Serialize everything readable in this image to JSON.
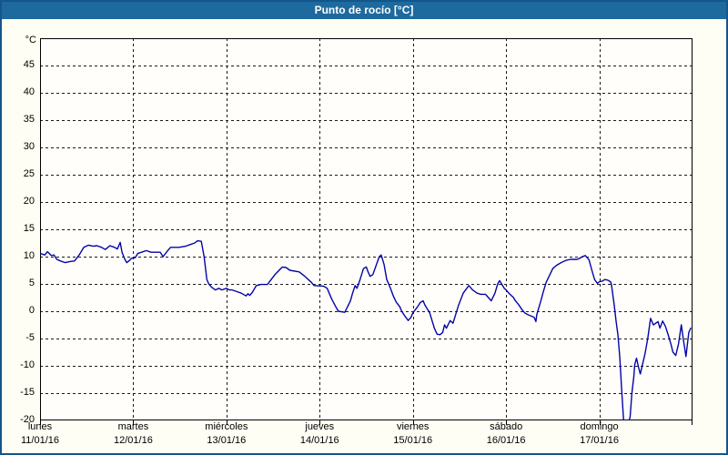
{
  "window": {
    "title": "Punto de rocío [°C]"
  },
  "colors": {
    "titlebar_bg": "#1e6a9e",
    "titlebar_text": "#ffffff",
    "outer_border": "#14558c",
    "page_bg": "#fffef4",
    "plot_bg": "#fffefa",
    "grid": "#1a1a1a",
    "axis": "#000000",
    "line": "#0404a8",
    "text": "#000000"
  },
  "chart_data": {
    "type": "line",
    "title": "Punto de rocío [°C]",
    "y_unit_label": "°C",
    "ylim": [
      -20,
      50
    ],
    "yticks": [
      45,
      40,
      35,
      30,
      25,
      20,
      15,
      10,
      5,
      0,
      -5,
      -10,
      -15,
      -20
    ],
    "x_days": 7,
    "grid": "dashed",
    "legend": "none",
    "days": [
      {
        "name": "lunes",
        "date": "11/01/16"
      },
      {
        "name": "martes",
        "date": "12/01/16"
      },
      {
        "name": "miércoles",
        "date": "13/01/16"
      },
      {
        "name": "jueves",
        "date": "14/01/16"
      },
      {
        "name": "viernes",
        "date": "15/01/16"
      },
      {
        "name": "sábado",
        "date": "16/01/16"
      },
      {
        "name": "domingo",
        "date": "17/01/16"
      }
    ],
    "series": [
      {
        "name": "Punto de rocío",
        "color": "#0404a8",
        "points_day_value": [
          [
            0,
            10.6
          ],
          [
            0.05,
            10.3
          ],
          [
            0.08,
            10.9
          ],
          [
            0.12,
            10.2
          ],
          [
            0.15,
            10.3
          ],
          [
            0.18,
            9.5
          ],
          [
            0.22,
            9.2
          ],
          [
            0.27,
            8.9
          ],
          [
            0.32,
            9.1
          ],
          [
            0.37,
            9.2
          ],
          [
            0.42,
            10.3
          ],
          [
            0.47,
            11.7
          ],
          [
            0.52,
            12.1
          ],
          [
            0.57,
            11.9
          ],
          [
            0.61,
            12.0
          ],
          [
            0.66,
            11.7
          ],
          [
            0.7,
            11.3
          ],
          [
            0.75,
            12.0
          ],
          [
            0.8,
            11.7
          ],
          [
            0.83,
            11.4
          ],
          [
            0.86,
            12.6
          ],
          [
            0.88,
            10.8
          ],
          [
            0.91,
            9.5
          ],
          [
            0.93,
            8.9
          ],
          [
            0.96,
            9.3
          ],
          [
            0.98,
            9.7
          ],
          [
            1.02,
            9.8
          ],
          [
            1.05,
            10.6
          ],
          [
            1.09,
            10.8
          ],
          [
            1.14,
            11.1
          ],
          [
            1.19,
            10.8
          ],
          [
            1.29,
            10.8
          ],
          [
            1.32,
            10.0
          ],
          [
            1.37,
            11.1
          ],
          [
            1.4,
            11.7
          ],
          [
            1.49,
            11.7
          ],
          [
            1.56,
            11.9
          ],
          [
            1.61,
            12.2
          ],
          [
            1.66,
            12.5
          ],
          [
            1.69,
            12.9
          ],
          [
            1.73,
            12.8
          ],
          [
            1.76,
            10.0
          ],
          [
            1.79,
            5.8
          ],
          [
            1.81,
            5.0
          ],
          [
            1.84,
            4.4
          ],
          [
            1.88,
            3.9
          ],
          [
            1.92,
            4.2
          ],
          [
            1.95,
            3.9
          ],
          [
            2.0,
            4.2
          ],
          [
            2.03,
            3.9
          ],
          [
            2.06,
            3.9
          ],
          [
            2.11,
            3.6
          ],
          [
            2.16,
            3.3
          ],
          [
            2.21,
            2.8
          ],
          [
            2.23,
            3.2
          ],
          [
            2.25,
            2.9
          ],
          [
            2.28,
            3.5
          ],
          [
            2.32,
            4.7
          ],
          [
            2.37,
            4.9
          ],
          [
            2.44,
            4.9
          ],
          [
            2.52,
            6.7
          ],
          [
            2.6,
            8.1
          ],
          [
            2.64,
            8.0
          ],
          [
            2.68,
            7.5
          ],
          [
            2.78,
            7.2
          ],
          [
            2.84,
            6.4
          ],
          [
            2.91,
            5.3
          ],
          [
            2.94,
            4.7
          ],
          [
            3.04,
            4.6
          ],
          [
            3.08,
            4.2
          ],
          [
            3.13,
            2.2
          ],
          [
            3.18,
            0.6
          ],
          [
            3.2,
            0.0
          ],
          [
            3.27,
            -0.2
          ],
          [
            3.33,
            1.9
          ],
          [
            3.35,
            3.1
          ],
          [
            3.38,
            4.7
          ],
          [
            3.4,
            4.2
          ],
          [
            3.43,
            5.6
          ],
          [
            3.47,
            7.8
          ],
          [
            3.5,
            8.1
          ],
          [
            3.52,
            7.2
          ],
          [
            3.54,
            6.4
          ],
          [
            3.57,
            6.7
          ],
          [
            3.61,
            8.6
          ],
          [
            3.64,
            10.0
          ],
          [
            3.66,
            10.3
          ],
          [
            3.69,
            8.6
          ],
          [
            3.72,
            5.8
          ],
          [
            3.76,
            4.2
          ],
          [
            3.79,
            2.8
          ],
          [
            3.82,
            1.7
          ],
          [
            3.86,
            0.8
          ],
          [
            3.88,
            0.0
          ],
          [
            3.91,
            -0.8
          ],
          [
            3.95,
            -1.7
          ],
          [
            3.98,
            -1.1
          ],
          [
            4.0,
            -0.3
          ],
          [
            4.05,
            0.8
          ],
          [
            4.08,
            1.6
          ],
          [
            4.11,
            1.9
          ],
          [
            4.13,
            1.1
          ],
          [
            4.18,
            -0.3
          ],
          [
            4.23,
            -3.1
          ],
          [
            4.26,
            -4.2
          ],
          [
            4.29,
            -4.3
          ],
          [
            4.32,
            -3.9
          ],
          [
            4.34,
            -2.5
          ],
          [
            4.36,
            -3.1
          ],
          [
            4.4,
            -1.7
          ],
          [
            4.43,
            -2.2
          ],
          [
            4.49,
            1.1
          ],
          [
            4.54,
            3.3
          ],
          [
            4.6,
            4.7
          ],
          [
            4.64,
            3.9
          ],
          [
            4.69,
            3.3
          ],
          [
            4.73,
            3.1
          ],
          [
            4.78,
            3.1
          ],
          [
            4.81,
            2.5
          ],
          [
            4.84,
            1.9
          ],
          [
            4.88,
            3.3
          ],
          [
            4.91,
            5.0
          ],
          [
            4.93,
            5.6
          ],
          [
            4.98,
            4.2
          ],
          [
            5.0,
            3.9
          ],
          [
            5.03,
            3.3
          ],
          [
            5.08,
            2.5
          ],
          [
            5.1,
            1.9
          ],
          [
            5.13,
            1.3
          ],
          [
            5.17,
            0.3
          ],
          [
            5.2,
            -0.3
          ],
          [
            5.23,
            -0.6
          ],
          [
            5.3,
            -1.1
          ],
          [
            5.32,
            -1.9
          ],
          [
            5.33,
            -0.6
          ],
          [
            5.37,
            1.7
          ],
          [
            5.4,
            3.6
          ],
          [
            5.43,
            5.3
          ],
          [
            5.47,
            6.7
          ],
          [
            5.5,
            7.8
          ],
          [
            5.54,
            8.4
          ],
          [
            5.59,
            8.9
          ],
          [
            5.64,
            9.3
          ],
          [
            5.69,
            9.5
          ],
          [
            5.76,
            9.5
          ],
          [
            5.79,
            9.7
          ],
          [
            5.82,
            10.0
          ],
          [
            5.85,
            10.2
          ],
          [
            5.89,
            9.4
          ],
          [
            5.92,
            7.5
          ],
          [
            5.95,
            5.8
          ],
          [
            5.98,
            5.1
          ],
          [
            6.0,
            5.4
          ],
          [
            6.03,
            5.5
          ],
          [
            6.06,
            5.8
          ],
          [
            6.09,
            5.7
          ],
          [
            6.12,
            5.4
          ],
          [
            6.13,
            4.9
          ],
          [
            6.16,
            1.1
          ],
          [
            6.18,
            -1.8
          ],
          [
            6.2,
            -4.4
          ],
          [
            6.22,
            -8.5
          ],
          [
            6.24,
            -14.5
          ],
          [
            6.26,
            -19.8
          ],
          [
            6.28,
            -20.6
          ],
          [
            6.31,
            -20.5
          ],
          [
            6.33,
            -19.4
          ],
          [
            6.35,
            -15.0
          ],
          [
            6.37,
            -12.0
          ],
          [
            6.38,
            -9.8
          ],
          [
            6.4,
            -8.6
          ],
          [
            6.42,
            -10.2
          ],
          [
            6.44,
            -11.5
          ],
          [
            6.47,
            -9.3
          ],
          [
            6.49,
            -7.8
          ],
          [
            6.52,
            -5.0
          ],
          [
            6.55,
            -1.3
          ],
          [
            6.58,
            -2.5
          ],
          [
            6.63,
            -1.9
          ],
          [
            6.65,
            -3.1
          ],
          [
            6.68,
            -1.8
          ],
          [
            6.71,
            -2.8
          ],
          [
            6.74,
            -4.4
          ],
          [
            6.77,
            -6.1
          ],
          [
            6.79,
            -7.5
          ],
          [
            6.82,
            -8.1
          ],
          [
            6.85,
            -6.0
          ],
          [
            6.88,
            -2.5
          ],
          [
            6.9,
            -5.0
          ],
          [
            6.93,
            -8.3
          ],
          [
            6.96,
            -3.9
          ],
          [
            6.98,
            -3.1
          ]
        ]
      }
    ]
  }
}
